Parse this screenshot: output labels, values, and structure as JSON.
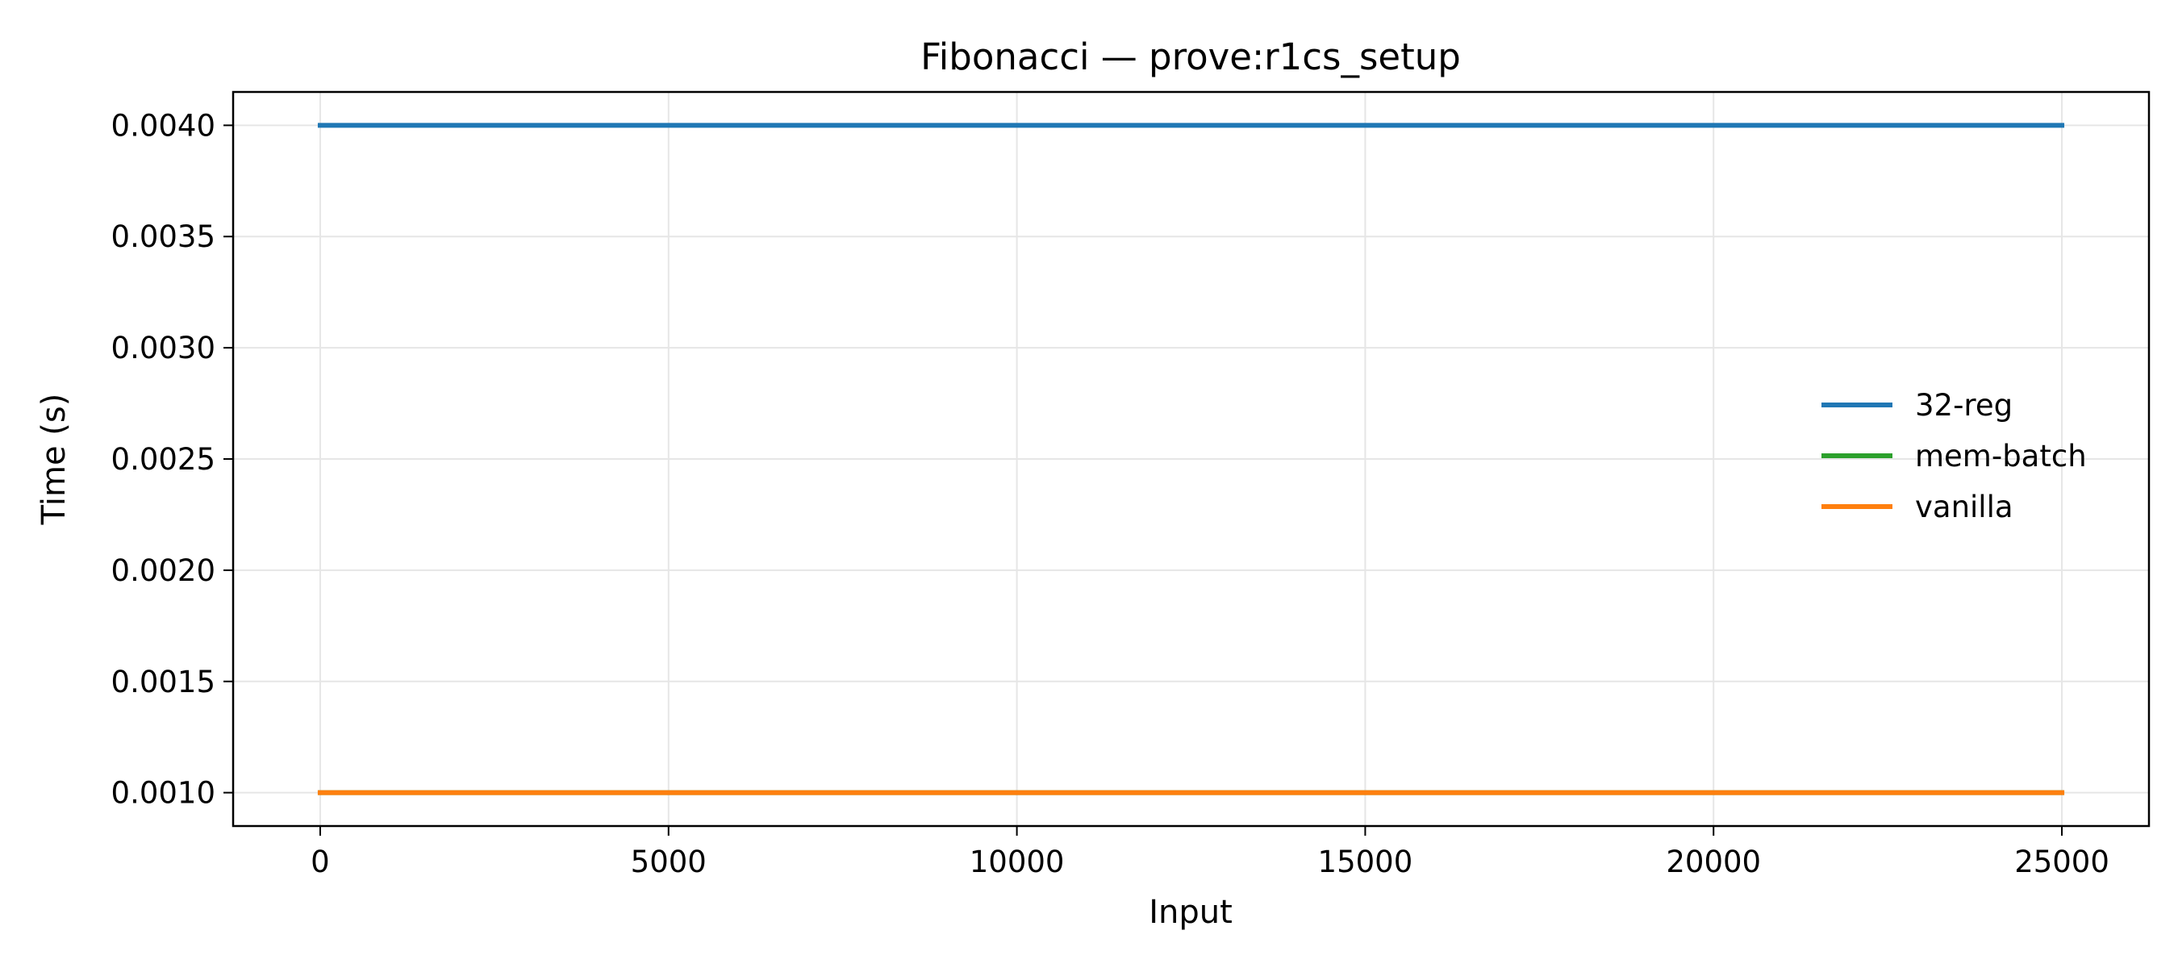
{
  "chart_data": {
    "type": "line",
    "title": "Fibonacci — prove:r1cs_setup",
    "xlabel": "Input",
    "ylabel": "Time (s)",
    "xlim": [
      -1250,
      26250
    ],
    "ylim": [
      0.00085,
      0.00415
    ],
    "xticks": [
      0,
      5000,
      10000,
      15000,
      20000,
      25000
    ],
    "xtick_labels": [
      "0",
      "5000",
      "10000",
      "15000",
      "20000",
      "25000"
    ],
    "yticks": [
      0.001,
      0.0015,
      0.002,
      0.0025,
      0.003,
      0.0035,
      0.004
    ],
    "ytick_labels": [
      "0.0010",
      "0.0015",
      "0.0020",
      "0.0025",
      "0.0030",
      "0.0035",
      "0.0040"
    ],
    "grid": true,
    "legend_position": "center-right",
    "series": [
      {
        "name": "32-reg",
        "color": "#1f77b4",
        "x": [
          0,
          25000
        ],
        "y": [
          0.004,
          0.004
        ]
      },
      {
        "name": "mem-batch",
        "color": "#2ca02c",
        "x": [
          0,
          25000
        ],
        "y": [
          0.001,
          0.001
        ]
      },
      {
        "name": "vanilla",
        "color": "#ff7f0e",
        "x": [
          0,
          25000
        ],
        "y": [
          0.001,
          0.001
        ]
      }
    ]
  }
}
